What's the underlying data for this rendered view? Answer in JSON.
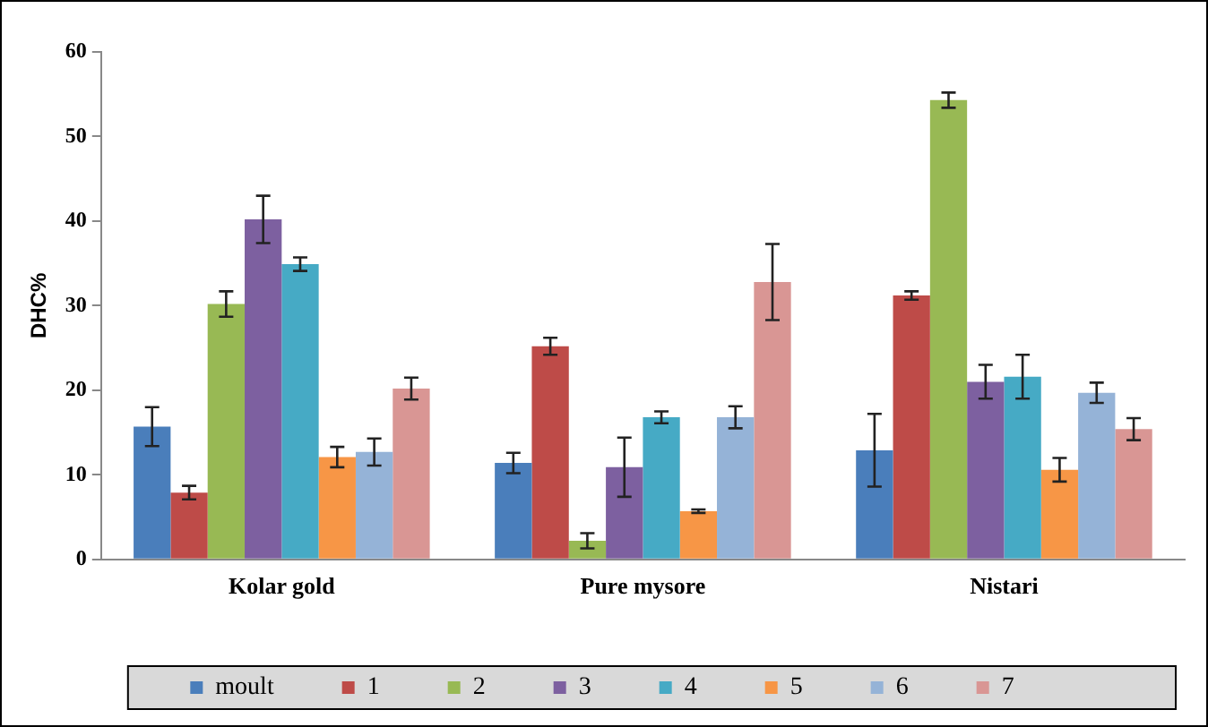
{
  "chart_data": {
    "type": "bar",
    "ylabel": "DHC%",
    "categories": [
      "Kolar gold",
      "Pure mysore",
      "Nistari"
    ],
    "series": [
      {
        "name": "moult",
        "color": "#4a7ebb",
        "values": [
          15.7,
          11.4,
          12.9
        ],
        "errors": [
          2.3,
          1.2,
          4.3
        ]
      },
      {
        "name": "1",
        "color": "#be4b48",
        "values": [
          7.9,
          25.2,
          31.2
        ],
        "errors": [
          0.8,
          1.0,
          0.5
        ]
      },
      {
        "name": "2",
        "color": "#98b954",
        "values": [
          30.2,
          2.2,
          54.3
        ],
        "errors": [
          1.5,
          0.9,
          0.9
        ]
      },
      {
        "name": "3",
        "color": "#7d60a0",
        "values": [
          40.2,
          10.9,
          21.0
        ],
        "errors": [
          2.8,
          3.5,
          2.0
        ]
      },
      {
        "name": "4",
        "color": "#46aac5",
        "values": [
          34.9,
          16.8,
          21.6
        ],
        "errors": [
          0.8,
          0.7,
          2.6
        ]
      },
      {
        "name": "5",
        "color": "#f79646",
        "values": [
          12.1,
          5.7,
          10.6
        ],
        "errors": [
          1.2,
          0.2,
          1.4
        ]
      },
      {
        "name": "6",
        "color": "#95b3d7",
        "values": [
          12.7,
          16.8,
          19.7
        ],
        "errors": [
          1.6,
          1.3,
          1.2
        ]
      },
      {
        "name": "7",
        "color": "#d99694",
        "values": [
          20.2,
          32.8,
          15.4
        ],
        "errors": [
          1.3,
          4.5,
          1.3
        ]
      }
    ],
    "ylim": [
      0,
      60
    ],
    "yticks": [
      0,
      10,
      20,
      30,
      40,
      50,
      60
    ],
    "grid": false,
    "legend": "bottom"
  }
}
